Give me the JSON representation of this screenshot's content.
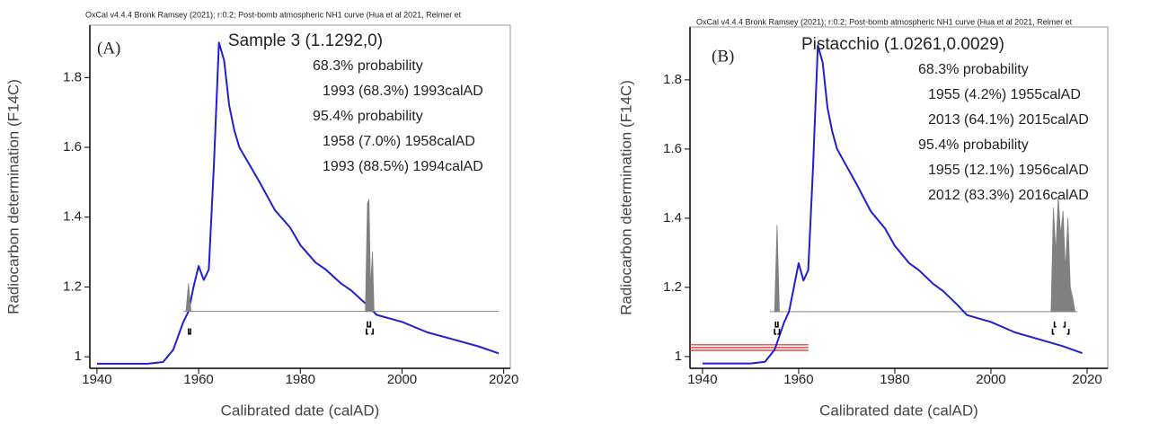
{
  "chart_data": [
    {
      "type": "line",
      "header": "OxCal v4.4.4 Bronk Ramsey (2021); r:0.2; Post-bomb atmospheric NH1 curve (Hua et al 2021, Reimer et",
      "panel_label": "(A)",
      "title": "Sample 3 (1.1292,0)",
      "probability_blocks": [
        {
          "label": "68.3% probability",
          "ranges": [
            "1993 (68.3%) 1993calAD"
          ]
        },
        {
          "label": "95.4% probability",
          "ranges": [
            "1958 (7.0%) 1958calAD",
            "1993 (88.5%) 1994calAD"
          ]
        }
      ],
      "xlabel": "Calibrated date (calAD)",
      "ylabel": "Radiocarbon determination (F14C)",
      "xlim": [
        1938.6,
        2021.3
      ],
      "ylim": [
        0.967,
        1.95
      ],
      "xticks": [
        1940,
        1960,
        1980,
        2000,
        2020
      ],
      "yticks": [
        1,
        1.2,
        1.4,
        1.6,
        1.8
      ],
      "baseline": 1.13,
      "baseline_xlim": [
        1957,
        2019
      ],
      "ranges_68": [
        [
          1993.2,
          1993.8
        ]
      ],
      "ranges_95": [
        [
          1958,
          1958.4
        ],
        [
          1993,
          1994.3
        ]
      ],
      "series": [
        {
          "style": "line",
          "color": "#1f1fd0",
          "x": [
            1940,
            1950,
            1953,
            1955,
            1957,
            1958,
            1959,
            1960,
            1961,
            1962,
            1963,
            1964,
            1965,
            1966,
            1967,
            1968,
            1970,
            1972,
            1975,
            1978,
            1980,
            1983,
            1985,
            1988,
            1990,
            1993,
            1995,
            2000,
            2005,
            2010,
            2015,
            2019
          ],
          "values": [
            0.98,
            0.98,
            0.985,
            1.02,
            1.1,
            1.13,
            1.2,
            1.26,
            1.22,
            1.25,
            1.55,
            1.9,
            1.85,
            1.72,
            1.65,
            1.6,
            1.55,
            1.5,
            1.42,
            1.37,
            1.32,
            1.27,
            1.25,
            1.21,
            1.19,
            1.15,
            1.12,
            1.1,
            1.07,
            1.05,
            1.03,
            1.01
          ]
        },
        {
          "style": "area",
          "color": "#808080",
          "x": [
            1957.5,
            1958,
            1958.5,
            1975,
            1992.8,
            1993.2,
            1993.5,
            1993.8,
            1994.2,
            1994.5
          ],
          "values": [
            1.13,
            1.21,
            1.13,
            null,
            1.13,
            1.44,
            1.45,
            1.2,
            1.3,
            1.13
          ]
        }
      ]
    },
    {
      "type": "line",
      "header": "OxCal v4.4.4 Bronk Ramsey (2021); r:0.2; Post-bomb atmospheric NH1 curve (Hua et al 2021, Reimer et",
      "panel_label": "(B)",
      "title": "Pistacchio (1.0261,0.0029)",
      "probability_blocks": [
        {
          "label": "68.3% probability",
          "ranges": [
            "1955 (4.2%) 1955calAD",
            "2013 (64.1%) 2015calAD"
          ]
        },
        {
          "label": "95.4% probability",
          "ranges": [
            "1955 (12.1%) 1956calAD",
            "2012 (83.3%) 2016calAD"
          ]
        }
      ],
      "xlabel": "Calibrated date (calAD)",
      "ylabel": "Radiocarbon determination (F14C)",
      "xlim": [
        1937.4,
        2024.3
      ],
      "ylim": [
        0.966,
        1.953
      ],
      "xticks": [
        1940,
        1960,
        1980,
        2000,
        2020
      ],
      "yticks": [
        1,
        1.2,
        1.4,
        1.6,
        1.8
      ],
      "baseline": 1.13,
      "baseline_xlim": [
        1954,
        2018
      ],
      "ranges_68": [
        [
          1955.2,
          1955.7
        ],
        [
          2013.2,
          2015.4
        ]
      ],
      "ranges_95": [
        [
          1955,
          1956
        ],
        [
          2012.8,
          2016.2
        ]
      ],
      "measurement_lines": [
        1.034,
        1.026,
        1.018
      ],
      "measurement_xlim": [
        1937.4,
        1962
      ],
      "measurement_color": "#e02020",
      "series": [
        {
          "style": "line",
          "color": "#1f1fd0",
          "x": [
            1940,
            1950,
            1953,
            1955,
            1957,
            1958,
            1959,
            1960,
            1961,
            1962,
            1963,
            1964,
            1965,
            1966,
            1967,
            1968,
            1970,
            1972,
            1975,
            1978,
            1980,
            1983,
            1985,
            1988,
            1990,
            1993,
            1995,
            2000,
            2005,
            2010,
            2015,
            2019
          ],
          "values": [
            0.98,
            0.98,
            0.985,
            1.02,
            1.1,
            1.13,
            1.2,
            1.27,
            1.22,
            1.25,
            1.55,
            1.9,
            1.85,
            1.72,
            1.65,
            1.6,
            1.55,
            1.5,
            1.42,
            1.37,
            1.32,
            1.27,
            1.25,
            1.21,
            1.19,
            1.15,
            1.12,
            1.1,
            1.07,
            1.05,
            1.03,
            1.01
          ]
        },
        {
          "style": "area",
          "color": "#808080",
          "x": [
            1955,
            1955.5,
            1956,
            1985,
            2012.5,
            2013,
            2013.5,
            2014,
            2014.5,
            2015,
            2015.5,
            2016,
            2016.5,
            2017,
            2017.5
          ],
          "values": [
            1.13,
            1.38,
            1.13,
            null,
            1.13,
            1.43,
            1.3,
            1.46,
            1.35,
            1.42,
            1.25,
            1.4,
            1.2,
            1.17,
            1.13
          ]
        }
      ]
    }
  ]
}
